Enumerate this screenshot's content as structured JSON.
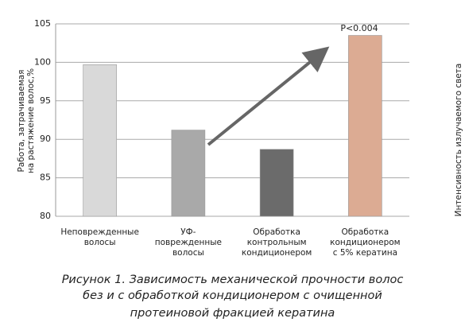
{
  "chart_data": {
    "type": "bar",
    "y_label": "Работа, затрачиваемая\nна растяжение волос,%",
    "right_label": "Интенсивность излучаемого света",
    "categories": [
      "Неповрежденные\nволосы",
      "УФ-\nповрежденные\nволосы",
      "Обработка\nконтрольным\nкондиционером",
      "Обработка\nкондиционером\nс 5% кератина"
    ],
    "values": [
      99.7,
      91.2,
      88.7,
      103.5
    ],
    "colors": [
      "#d9d9d9",
      "#a9a9a9",
      "#6b6b6b",
      "#dcab93"
    ],
    "ylim": [
      80,
      105
    ],
    "yticks": [
      80,
      85,
      90,
      95,
      100,
      105
    ],
    "grid": true,
    "annotation": "P<0.004",
    "caption": [
      "Рисунок 1. Зависимость механической прочности волос",
      "без и с обработкой кондиционером с очищенной",
      "протеиновой фракцией кератина"
    ]
  }
}
